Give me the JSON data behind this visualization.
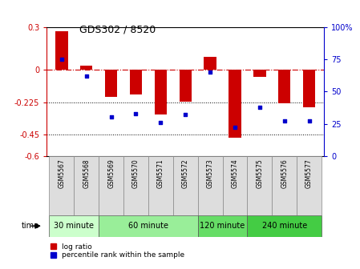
{
  "title": "GDS302 / 8520",
  "samples": [
    "GSM5567",
    "GSM5568",
    "GSM5569",
    "GSM5570",
    "GSM5571",
    "GSM5572",
    "GSM5573",
    "GSM5574",
    "GSM5575",
    "GSM5576",
    "GSM5577"
  ],
  "log_ratios": [
    0.27,
    0.03,
    -0.19,
    -0.17,
    -0.31,
    -0.22,
    0.09,
    -0.47,
    -0.05,
    -0.23,
    -0.26
  ],
  "percentiles": [
    75,
    62,
    30,
    33,
    26,
    32,
    65,
    22,
    38,
    27,
    27
  ],
  "ylim_left": [
    -0.6,
    0.3
  ],
  "ylim_right": [
    0,
    100
  ],
  "bar_color": "#CC0000",
  "scatter_color": "#0000CC",
  "time_groups": [
    {
      "label": "30 minute",
      "start": 0,
      "end": 1,
      "color": "#CCFFCC"
    },
    {
      "label": "60 minute",
      "start": 2,
      "end": 5,
      "color": "#99EE99"
    },
    {
      "label": "120 minute",
      "start": 6,
      "end": 7,
      "color": "#66DD66"
    },
    {
      "label": "240 minute",
      "start": 8,
      "end": 10,
      "color": "#44CC44"
    }
  ],
  "legend_log_ratio": "log ratio",
  "legend_percentile": "percentile rank within the sample",
  "bg_color": "#FFFFFF",
  "panel_bg": "#DDDDDD"
}
